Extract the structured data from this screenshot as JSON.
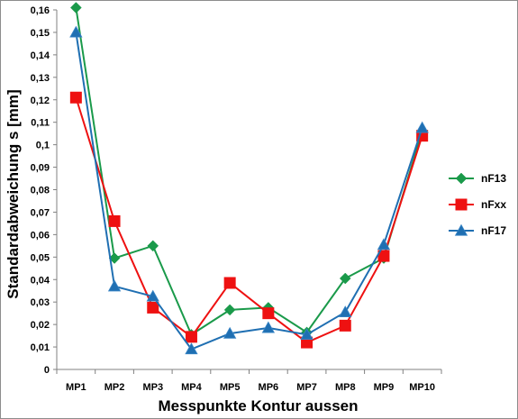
{
  "chart_data": {
    "type": "line",
    "xlabel": "Messpunkte  Kontur aussen",
    "ylabel": "Standardabweichung  s [mm]",
    "categories": [
      "MP1",
      "MP2",
      "MP3",
      "MP4",
      "MP5",
      "MP6",
      "MP7",
      "MP8",
      "MP9",
      "MP10"
    ],
    "ylim": [
      0,
      0.16
    ],
    "yticks": [
      "0",
      "0,01",
      "0,02",
      "0,03",
      "0,04",
      "0,05",
      "0,06",
      "0,07",
      "0,08",
      "0,09",
      "0,1",
      "0,11",
      "0,12",
      "0,13",
      "0,14",
      "0,15",
      "0,16"
    ],
    "grid": false,
    "legend_position": "right",
    "series": [
      {
        "name": "nF13",
        "color": "#1a9a4a",
        "marker": "diamond",
        "values": [
          0.161,
          0.0495,
          0.055,
          0.0155,
          0.0265,
          0.0275,
          0.0165,
          0.0405,
          0.0495,
          0.106
        ]
      },
      {
        "name": "nFxx",
        "color": "#ee1111",
        "marker": "square",
        "values": [
          0.121,
          0.066,
          0.0275,
          0.0145,
          0.0385,
          0.025,
          0.012,
          0.0195,
          0.0505,
          0.104
        ]
      },
      {
        "name": "nF17",
        "color": "#1f6fb2",
        "marker": "triangle",
        "values": [
          0.15,
          0.037,
          0.0325,
          0.009,
          0.016,
          0.0185,
          0.0155,
          0.0255,
          0.0555,
          0.1075
        ]
      }
    ]
  }
}
